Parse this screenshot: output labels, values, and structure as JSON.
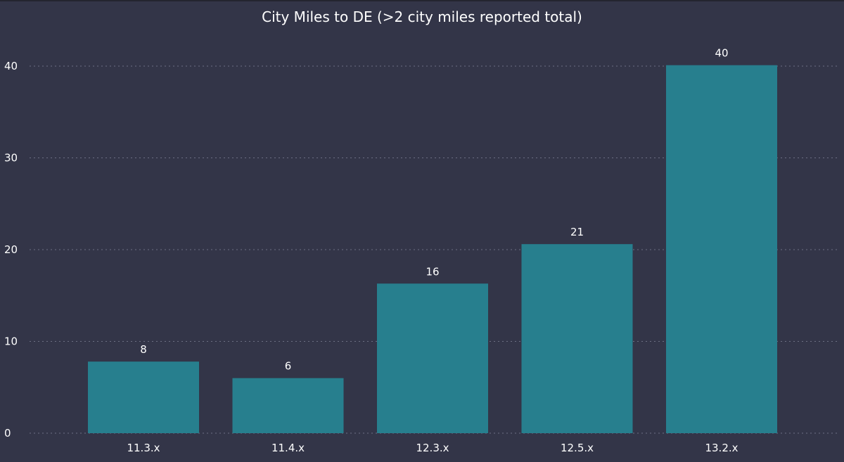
{
  "chart_data": {
    "type": "bar",
    "title": "City Miles to DE (>2 city miles reported total)",
    "categories": [
      "11.3.x",
      "11.4.x",
      "12.3.x",
      "12.5.x",
      "13.2.x"
    ],
    "values": [
      7.8,
      6.0,
      16.3,
      20.6,
      40.1
    ],
    "data_labels": [
      "8",
      "6",
      "16",
      "21",
      "40"
    ],
    "ylim": [
      0,
      40
    ],
    "yticks": [
      0,
      10,
      20,
      30,
      40
    ],
    "xlabel": "",
    "ylabel": "",
    "grid": true,
    "colors": {
      "background": "#333548",
      "bar": "#277f8e",
      "grid": "#6c6f83",
      "text": "#ffffff"
    }
  }
}
